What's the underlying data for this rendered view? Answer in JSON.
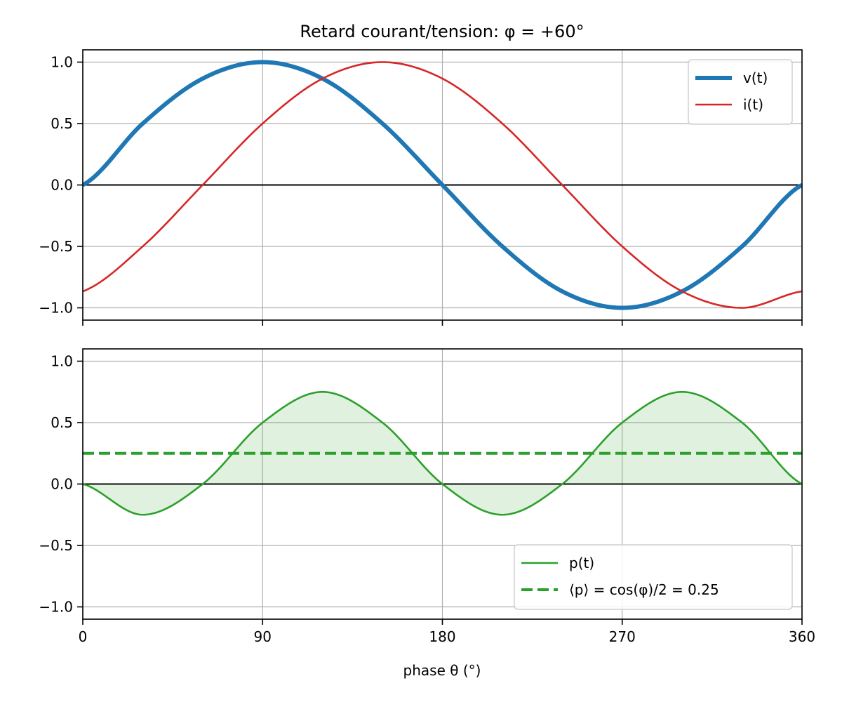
{
  "chart_data": [
    {
      "type": "line",
      "title": "Retard courant/tension: φ = +60°",
      "xlabel": "",
      "ylabel": "",
      "xlim": [
        0,
        360
      ],
      "ylim": [
        -1.1,
        1.1
      ],
      "x_ticks": [
        0,
        90,
        180,
        270,
        360
      ],
      "x_tick_labels": [
        "",
        "",
        "",
        "",
        ""
      ],
      "y_ticks": [
        -1.0,
        -0.5,
        0.0,
        0.5,
        1.0
      ],
      "y_tick_labels": [
        "−1.0",
        "−0.5",
        "0.0",
        "0.5",
        "1.0"
      ],
      "grid": true,
      "legend_position": "upper-right",
      "x": [
        0,
        30,
        60,
        90,
        120,
        150,
        180,
        210,
        240,
        270,
        300,
        330,
        360
      ],
      "series": [
        {
          "name": "v(t)",
          "color": "#1f77b4",
          "values": [
            0.0,
            0.5,
            0.866,
            1.0,
            0.866,
            0.5,
            0.0,
            -0.5,
            -0.866,
            -1.0,
            -0.866,
            -0.5,
            0.0
          ]
        },
        {
          "name": "i(t)",
          "color": "#d62728",
          "values": [
            -0.866,
            -0.5,
            0.0,
            0.5,
            0.866,
            1.0,
            0.866,
            0.5,
            0.0,
            -0.5,
            -0.866,
            -1.0,
            -0.866
          ]
        }
      ]
    },
    {
      "type": "area",
      "title": "",
      "xlabel": "phase θ (°)",
      "ylabel": "",
      "xlim": [
        0,
        360
      ],
      "ylim": [
        -1.1,
        1.1
      ],
      "x_ticks": [
        0,
        90,
        180,
        270,
        360
      ],
      "x_tick_labels": [
        "0",
        "90",
        "180",
        "270",
        "360"
      ],
      "y_ticks": [
        -1.0,
        -0.5,
        0.0,
        0.5,
        1.0
      ],
      "y_tick_labels": [
        "−1.0",
        "−0.5",
        "0.0",
        "0.5",
        "1.0"
      ],
      "grid": true,
      "legend_position": "lower-right",
      "x": [
        0,
        30,
        60,
        90,
        120,
        150,
        180,
        210,
        240,
        270,
        300,
        330,
        360
      ],
      "series": [
        {
          "name": "p(t)",
          "color": "#2ca02c",
          "fill_color": "#2ca02c",
          "values": [
            0.0,
            -0.25,
            0.0,
            0.5,
            0.75,
            0.5,
            0.0,
            -0.25,
            0.0,
            0.5,
            0.75,
            0.5,
            0.0
          ]
        },
        {
          "name": "⟨p⟩ = cos(φ)/2 = 0.25",
          "color": "#2ca02c",
          "dashed": true,
          "values": [
            0.25,
            0.25,
            0.25,
            0.25,
            0.25,
            0.25,
            0.25,
            0.25,
            0.25,
            0.25,
            0.25,
            0.25,
            0.25
          ]
        }
      ]
    }
  ]
}
